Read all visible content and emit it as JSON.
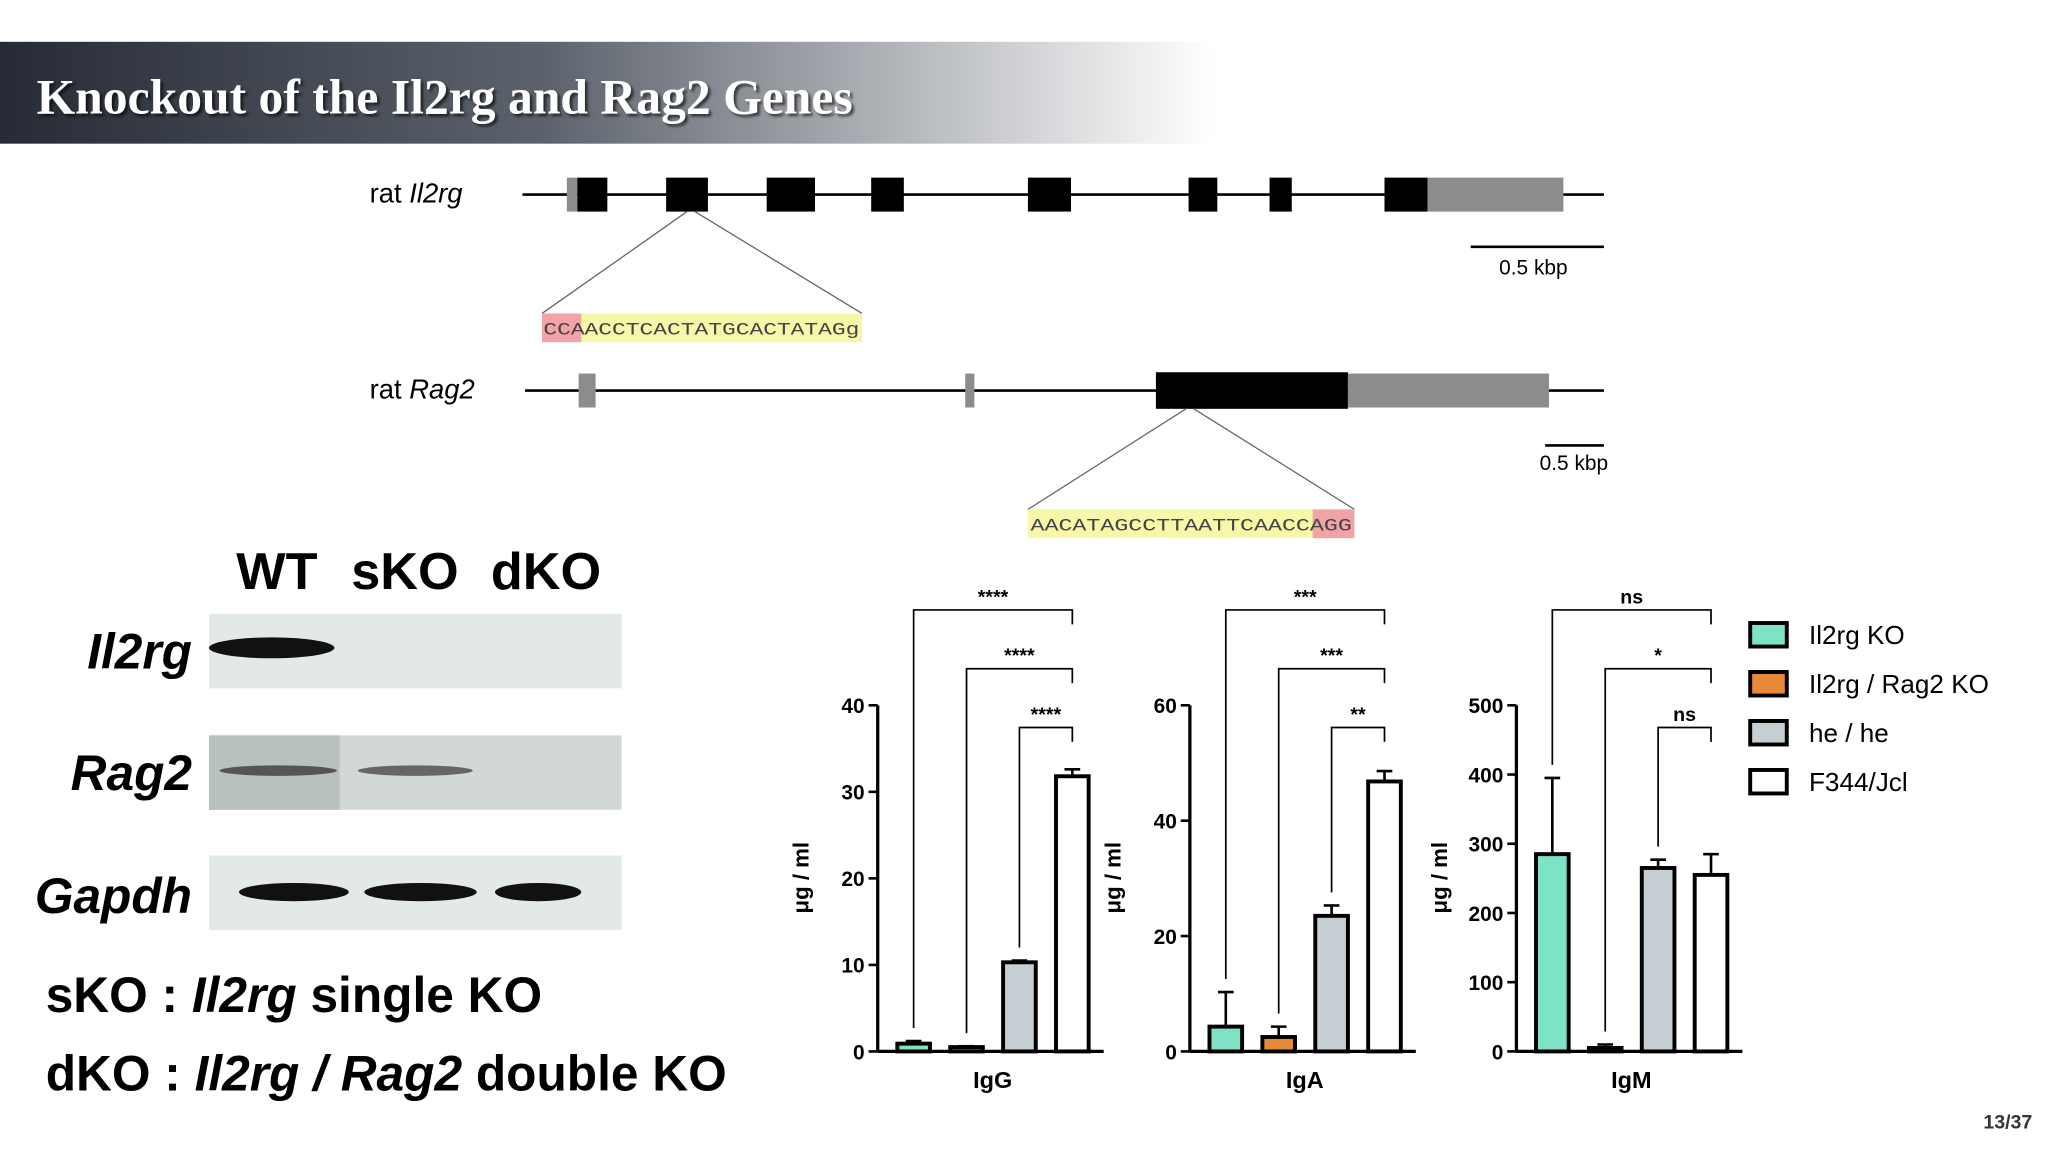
{
  "header": {
    "title": "Knockout of the Il2rg and Rag2 Genes"
  },
  "genes": [
    {
      "label": [
        "rat ",
        "Il2rg"
      ],
      "sequence": [
        "CCA",
        "ACCTCACTATGCACTATAGg"
      ],
      "scale": "0.5 kbp"
    },
    {
      "label": [
        "rat ",
        "Rag2"
      ],
      "sequence": [
        "AACATAGCCTTAATTCAACC",
        "AGG"
      ],
      "scale": "0.5 kbp"
    }
  ],
  "gel": {
    "lanes": [
      "WT",
      "sKO",
      "dKO"
    ],
    "rows": [
      "Il2rg",
      "Rag2",
      "Gapdh"
    ]
  },
  "notes": [
    [
      "sKO : ",
      "Il2rg",
      " single KO"
    ],
    [
      "dKO : ",
      "Il2rg / Rag2",
      " double KO"
    ]
  ],
  "chart_data": [
    {
      "type": "bar",
      "categories": [
        "IgG"
      ],
      "y_label": "μg / ml",
      "ylim": [
        0,
        40
      ],
      "yticks": [
        0,
        10,
        20,
        30,
        40
      ],
      "series": [
        {
          "name": "Il2rg KO",
          "color": "#7ee3c6",
          "values": [
            0.9
          ],
          "errors": [
            0.3
          ]
        },
        {
          "name": "Il2rg / Rag2 KO",
          "color": "#e8893a",
          "values": [
            0.5
          ],
          "errors": [
            0.1
          ]
        },
        {
          "name": "he / he",
          "color": "#c5cfd3",
          "values": [
            10.3
          ],
          "errors": [
            0.2
          ]
        },
        {
          "name": "F344/Jcl",
          "color": "#ffffff",
          "values": [
            31.8
          ],
          "errors": [
            0.8
          ]
        }
      ],
      "annotations": [
        {
          "label": "****",
          "from": 0,
          "to": 3
        },
        {
          "label": "****",
          "from": 1,
          "to": 3
        },
        {
          "label": "****",
          "from": 2,
          "to": 3
        }
      ]
    },
    {
      "type": "bar",
      "categories": [
        "IgA"
      ],
      "y_label": "μg / ml",
      "ylim": [
        0,
        60
      ],
      "yticks": [
        0,
        20,
        40,
        60
      ],
      "series": [
        {
          "color": "#7ee3c6",
          "values": [
            4.3
          ],
          "errors": [
            6
          ]
        },
        {
          "color": "#e8893a",
          "values": [
            2.5
          ],
          "errors": [
            1.8
          ]
        },
        {
          "color": "#c5cfd3",
          "values": [
            23.5
          ],
          "errors": [
            1.8
          ]
        },
        {
          "color": "#ffffff",
          "values": [
            46.8
          ],
          "errors": [
            1.8
          ]
        }
      ],
      "annotations": [
        {
          "label": "***",
          "from": 0,
          "to": 3
        },
        {
          "label": "***",
          "from": 1,
          "to": 3
        },
        {
          "label": "**",
          "from": 2,
          "to": 3
        }
      ]
    },
    {
      "type": "bar",
      "categories": [
        "IgM"
      ],
      "y_label": "μg / ml",
      "ylim": [
        0,
        500
      ],
      "yticks": [
        0,
        100,
        200,
        300,
        400,
        500
      ],
      "series": [
        {
          "color": "#7ee3c6",
          "values": [
            285
          ],
          "errors": [
            110
          ]
        },
        {
          "color": "#e8893a",
          "values": [
            5
          ],
          "errors": [
            5
          ]
        },
        {
          "color": "#c5cfd3",
          "values": [
            265
          ],
          "errors": [
            12
          ]
        },
        {
          "color": "#ffffff",
          "values": [
            255
          ],
          "errors": [
            30
          ]
        }
      ],
      "annotations": [
        {
          "label": "ns",
          "from": 0,
          "to": 3
        },
        {
          "label": "*",
          "from": 1,
          "to": 3
        },
        {
          "label": "ns",
          "from": 2,
          "to": 3
        }
      ]
    }
  ],
  "page": "13/37"
}
